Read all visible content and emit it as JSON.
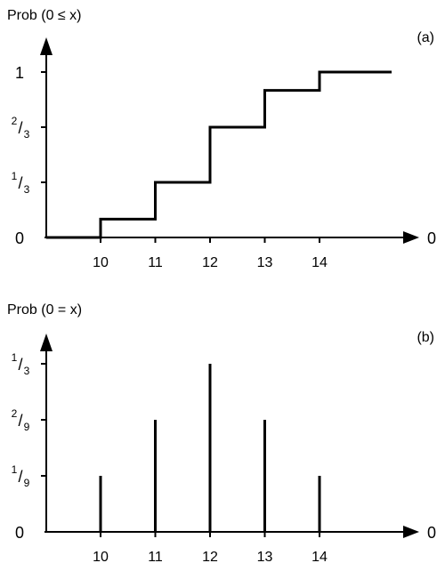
{
  "chart_data": [
    {
      "panel": "(a)",
      "type": "line",
      "step": true,
      "ylabel": "Prob (0 ≤ x)",
      "xlabel": "0",
      "x_ticks": [
        "10",
        "11",
        "12",
        "13",
        "14"
      ],
      "y_ticks": [
        {
          "value": 0,
          "num": "0",
          "den": ""
        },
        {
          "value": 0.3333,
          "num": "1",
          "den": "3"
        },
        {
          "value": 0.6667,
          "num": "2",
          "den": "3"
        },
        {
          "value": 1,
          "num": "1",
          "den": ""
        }
      ],
      "ylim": [
        0,
        1
      ],
      "x": [
        10,
        11,
        12,
        13,
        14
      ],
      "values": [
        0.1111,
        0.3333,
        0.6667,
        0.8889,
        1
      ]
    },
    {
      "panel": "(b)",
      "type": "bar",
      "ylabel": "Prob (0 = x)",
      "xlabel": "0",
      "x_ticks": [
        "10",
        "11",
        "12",
        "13",
        "14"
      ],
      "y_ticks": [
        {
          "value": 0,
          "num": "0",
          "den": ""
        },
        {
          "value": 0.1111,
          "num": "1",
          "den": "9"
        },
        {
          "value": 0.2222,
          "num": "2",
          "den": "9"
        },
        {
          "value": 0.3333,
          "num": "1",
          "den": "3"
        }
      ],
      "ylim": [
        0,
        0.3333
      ],
      "categories": [
        10,
        11,
        12,
        13,
        14
      ],
      "values": [
        0.1111,
        0.2222,
        0.3333,
        0.2222,
        0.1111
      ]
    }
  ]
}
